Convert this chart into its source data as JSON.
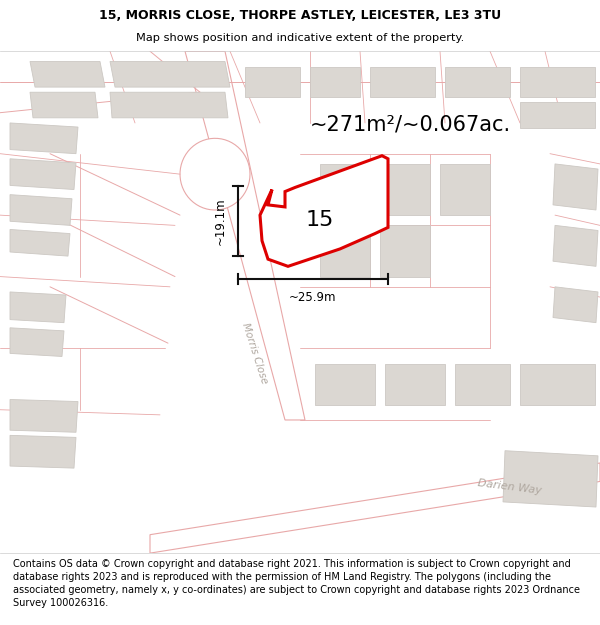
{
  "title_line1": "15, MORRIS CLOSE, THORPE ASTLEY, LEICESTER, LE3 3TU",
  "title_line2": "Map shows position and indicative extent of the property.",
  "footer_text": "Contains OS data © Crown copyright and database right 2021. This information is subject to Crown copyright and database rights 2023 and is reproduced with the permission of HM Land Registry. The polygons (including the associated geometry, namely x, y co-ordinates) are subject to Crown copyright and database rights 2023 Ordnance Survey 100026316.",
  "area_label": "~271m²/~0.067ac.",
  "property_number": "15",
  "dim_vertical": "~19.1m",
  "dim_horizontal": "~25.9m",
  "street_label1": "Morris Close",
  "street_label2": "Darien Way",
  "map_bg": "#f2efec",
  "plot_fill": "#ffffff",
  "plot_stroke": "#dd0000",
  "road_stroke": "#e8a8a8",
  "building_fill": "#dbd7d2",
  "building_stroke": "#ccc8c3",
  "dim_line_color": "#111111",
  "title_fontsize": 9.0,
  "subtitle_fontsize": 8.2,
  "footer_fontsize": 7.0,
  "area_fontsize": 15,
  "number_fontsize": 16,
  "street_fontsize": 7.5
}
